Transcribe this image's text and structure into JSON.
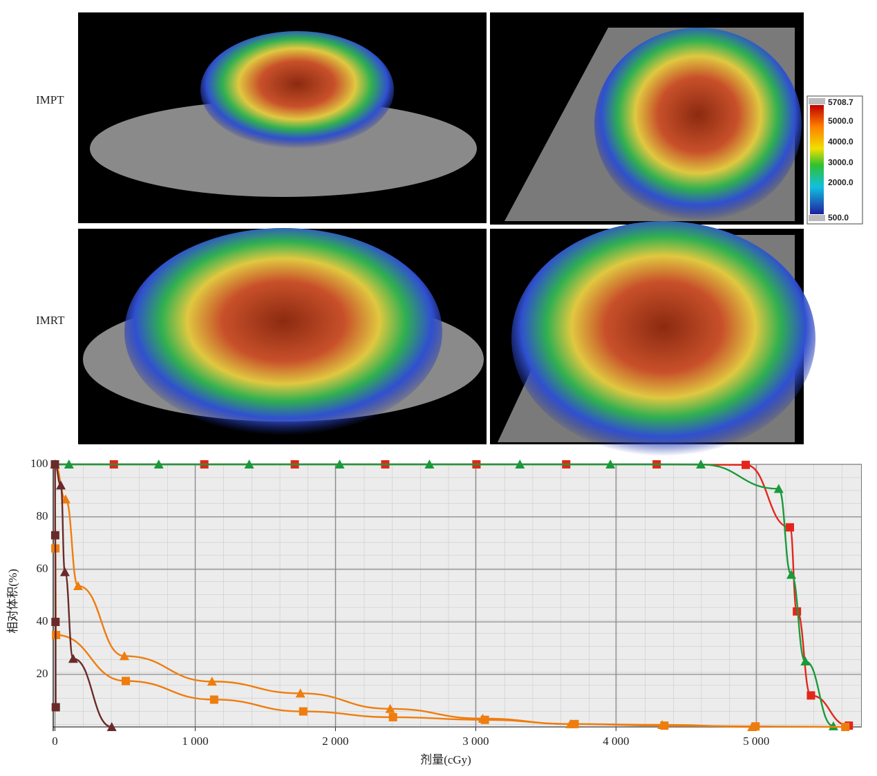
{
  "images": {
    "rows": [
      {
        "label": "IMPT"
      },
      {
        "label": "IMRT"
      }
    ],
    "colorbar": {
      "labels": [
        "5708.7",
        "5000.0",
        "4000.0",
        "3000.0",
        "2000.0",
        "500.0"
      ]
    }
  },
  "chart_data": {
    "type": "line",
    "x_label": "剂量(cGy)",
    "y_label": "相对体积(%)",
    "xlim": [
      0,
      5750
    ],
    "ylim": [
      0,
      100
    ],
    "xticks": [
      0,
      {
        "value": 1000,
        "label": "1 000"
      },
      {
        "value": 2000,
        "label": "2 000"
      },
      {
        "value": 3000,
        "label": "3 000"
      },
      {
        "value": 4000,
        "label": "4 000"
      },
      {
        "value": 5000,
        "label": "5 000"
      }
    ],
    "yticks": [
      20,
      40,
      60,
      80,
      100
    ],
    "grid": true,
    "series": [
      {
        "color": "#e3261b",
        "marker": "square",
        "x": [
          0,
          420,
          1065,
          1710,
          2355,
          3005,
          3645,
          4290,
          4925,
          5240,
          5290,
          5390,
          5660
        ],
        "values": [
          100,
          100,
          100,
          100,
          100,
          100,
          100,
          100,
          99.8,
          76,
          44,
          12,
          0.5
        ]
      },
      {
        "color": "#1a9a3a",
        "marker": "triangle",
        "x": [
          0,
          100,
          740,
          1385,
          2030,
          2670,
          3315,
          3960,
          4605,
          5160,
          5250,
          5350,
          5550
        ],
        "values": [
          100,
          100,
          100,
          100,
          100,
          100,
          100,
          100,
          100,
          90.7,
          58,
          25,
          0.3
        ]
      },
      {
        "color": "#ee7d0e",
        "marker": "square",
        "x": [
          0,
          3,
          8,
          505,
          1135,
          1770,
          2410,
          3065,
          3705,
          4345,
          4995,
          5635
        ],
        "values": [
          100,
          68,
          35,
          17.5,
          10.4,
          5.9,
          3.7,
          2.7,
          1.1,
          0.5,
          0.2,
          0
        ]
      },
      {
        "color": "#ee7d0e",
        "marker": "triangle",
        "x": [
          0,
          76,
          165,
          495,
          1120,
          1750,
          2390,
          3050,
          3675,
          4330,
          4970
        ],
        "values": [
          100,
          86.7,
          53.7,
          27,
          17.3,
          12.8,
          6.9,
          3.2,
          1.1,
          0.8,
          0
        ]
      },
      {
        "color": "#6b2a2a",
        "marker": "square",
        "x": [
          0,
          2,
          4,
          6
        ],
        "values": [
          100,
          73,
          40,
          7.5
        ]
      },
      {
        "color": "#6b2a2a",
        "marker": "triangle",
        "x": [
          0,
          42,
          71,
          130,
          405
        ],
        "values": [
          100,
          92,
          59,
          26,
          0
        ]
      }
    ]
  }
}
